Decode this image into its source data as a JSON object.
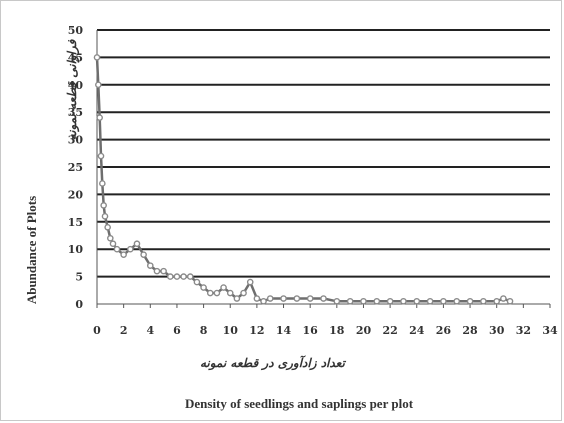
{
  "chart_data": {
    "type": "line",
    "title": "",
    "xlabel_fa": "تعداد زادآوری در قطعه نمونه",
    "xlabel": "Density of seedlings and saplings per plot",
    "ylabel_fa": "فراوانی قطعه نمونه",
    "ylabel": "Abundance of Plots",
    "xlim": [
      0,
      34
    ],
    "ylim": [
      0,
      50
    ],
    "x_ticks": [
      0,
      2,
      4,
      6,
      8,
      10,
      12,
      14,
      16,
      18,
      20,
      22,
      24,
      26,
      28,
      30,
      32,
      34
    ],
    "y_ticks": [
      0,
      5,
      10,
      15,
      20,
      25,
      30,
      35,
      40,
      45,
      50
    ],
    "grid": true,
    "legend": "none",
    "series": [
      {
        "x": [
          0,
          0.1,
          0.2,
          0.3,
          0.4,
          0.5,
          0.6,
          0.8,
          1,
          1.2,
          1.5,
          2,
          2.5,
          3,
          3.5,
          4,
          4.5,
          5,
          5.5,
          6,
          6.5,
          7,
          7.5,
          8,
          8.5,
          9,
          9.5,
          10,
          10.5,
          11,
          11.5,
          12,
          12.5,
          13,
          14,
          15,
          16,
          17,
          18,
          19,
          20,
          21,
          22,
          23,
          24,
          25,
          26,
          27,
          28,
          29,
          30,
          30.5,
          31
        ],
        "y": [
          45,
          40,
          34,
          27,
          22,
          18,
          16,
          14,
          12,
          11,
          10,
          9,
          10,
          11,
          9,
          7,
          6,
          6,
          5,
          5,
          5,
          5,
          4,
          3,
          2,
          2,
          3,
          2,
          1,
          2,
          4,
          1,
          0.5,
          1,
          1,
          1,
          1,
          1,
          0.5,
          0.5,
          0.5,
          0.5,
          0.5,
          0.5,
          0.5,
          0.5,
          0.5,
          0.5,
          0.5,
          0.5,
          0.5,
          1,
          0.5
        ]
      }
    ],
    "colors": {
      "line": "#6e6e6e",
      "marker": "#8a8a8a",
      "grid": "#222222",
      "axis": "#555555",
      "text": "#333333"
    }
  }
}
